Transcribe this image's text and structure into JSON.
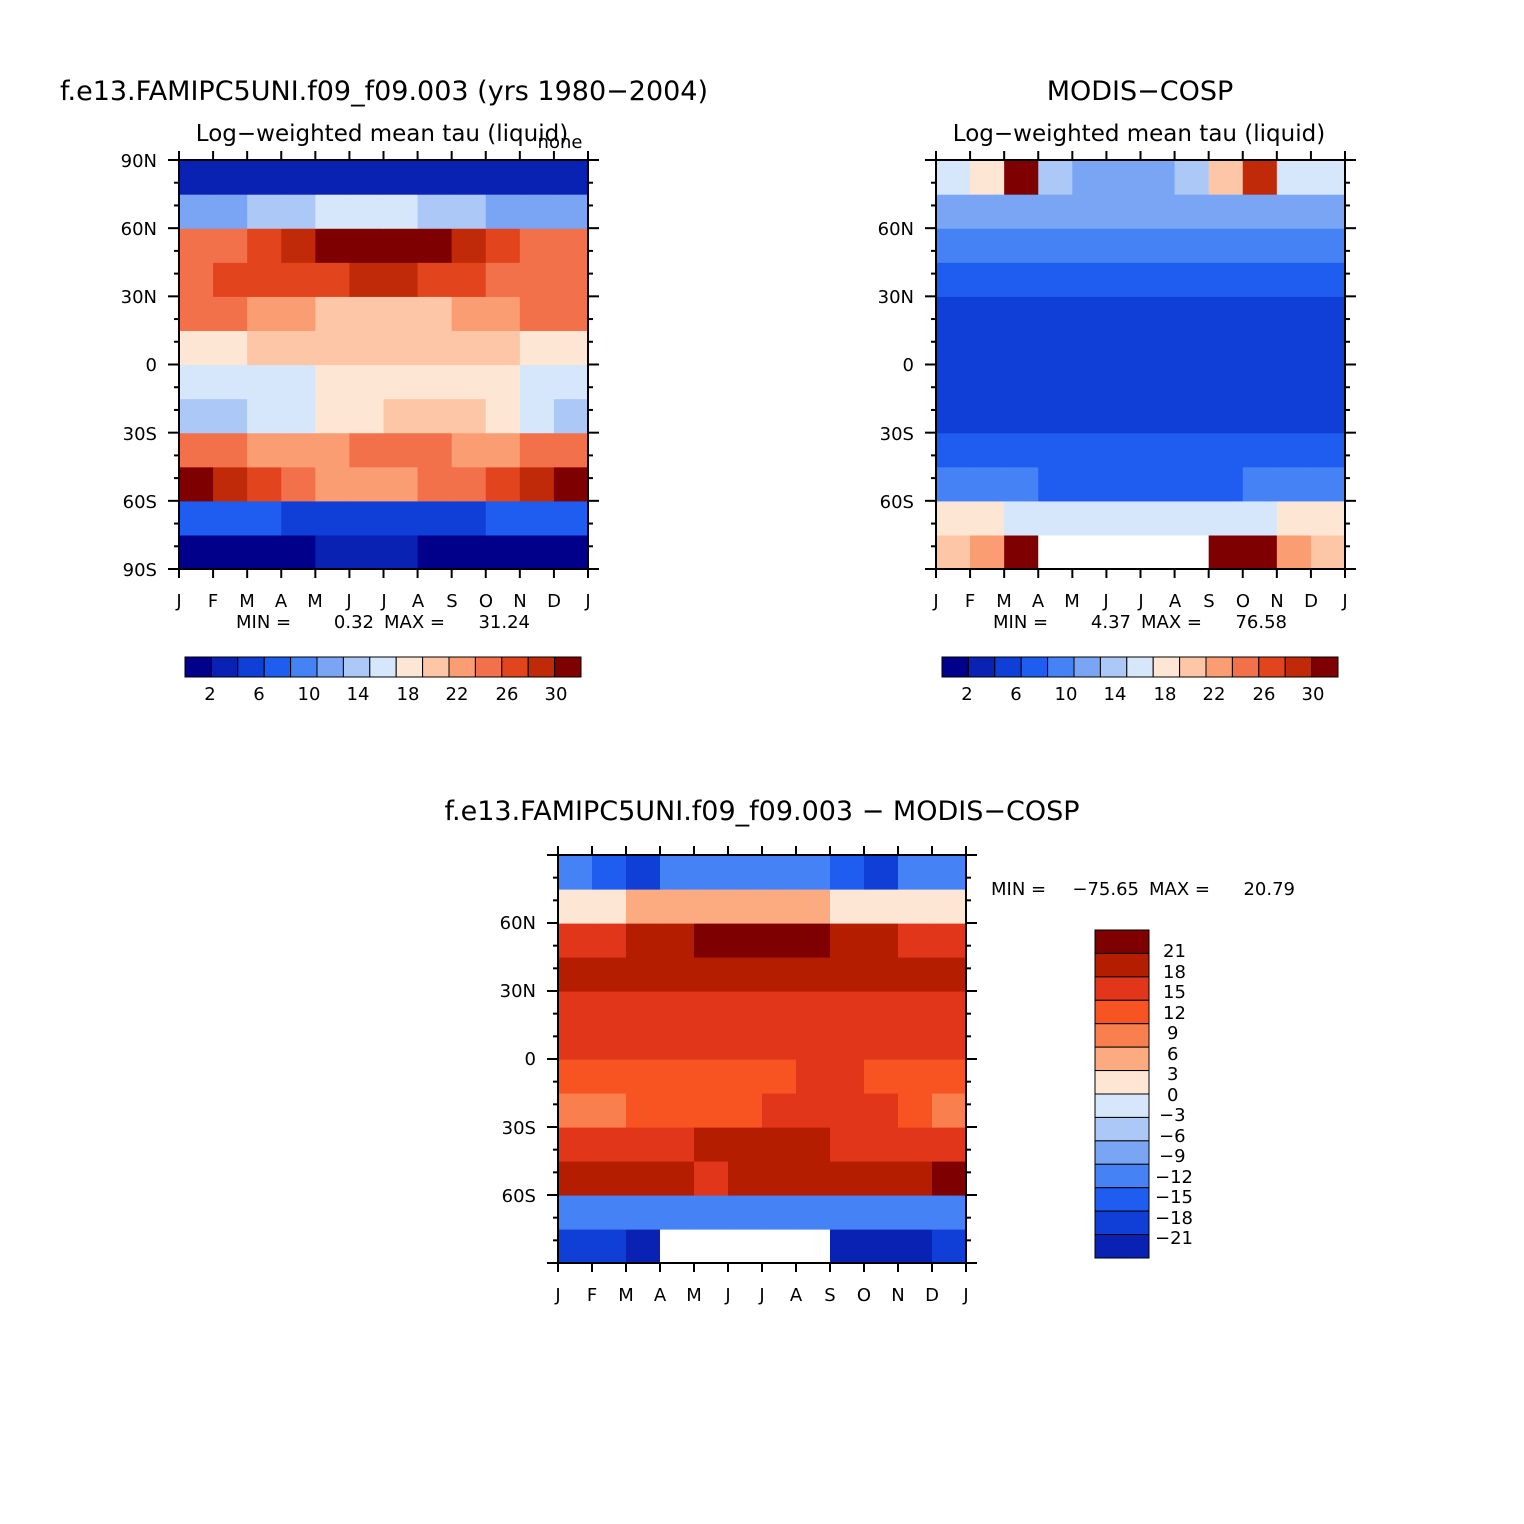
{
  "chart_data": [
    {
      "type": "heatmap",
      "id": "model",
      "title": "f.e13.FAMIPC5UNI.f09_f09.003 (yrs 1980−2004)",
      "subtitle": "Log−weighted mean tau (liquid)",
      "corner_label": "none",
      "xlabel": "",
      "ylabel": "",
      "x_ticks": [
        "J",
        "F",
        "M",
        "A",
        "M",
        "J",
        "J",
        "A",
        "S",
        "O",
        "N",
        "D",
        "J"
      ],
      "y_ticks": [
        "90N",
        "60N",
        "30N",
        "0",
        "30S",
        "60S",
        "90S"
      ],
      "xlim": [
        0,
        12
      ],
      "ylim": [
        -90,
        90
      ],
      "stats": {
        "min_label": "MIN =",
        "min": "0.32",
        "max_label": "MAX =",
        "max": "31.24"
      },
      "colorbar": {
        "labels": [
          "2",
          "6",
          "10",
          "14",
          "18",
          "22",
          "26",
          "30"
        ],
        "levels": [
          2,
          4,
          6,
          8,
          10,
          12,
          14,
          16,
          18,
          20,
          22,
          24,
          26,
          28,
          30
        ]
      },
      "months": [
        "Jan",
        "Feb",
        "Mar",
        "Apr",
        "May",
        "Jun",
        "Jul",
        "Aug",
        "Sep",
        "Oct",
        "Nov",
        "Dec"
      ],
      "latitude_bands": [
        -90,
        -75,
        -60,
        -45,
        -30,
        -15,
        0,
        15,
        30,
        45,
        60,
        75,
        90
      ],
      "band_values_tau": [
        [
          1,
          1,
          1,
          1,
          2,
          2,
          2,
          1,
          1,
          1,
          1,
          1
        ],
        [
          6,
          6,
          6,
          5,
          5,
          5,
          5,
          5,
          5,
          6,
          6,
          6
        ],
        [
          30,
          27,
          24,
          22,
          21,
          21,
          21,
          22,
          23,
          25,
          27,
          29
        ],
        [
          22,
          22,
          21,
          21,
          21,
          22,
          22,
          22,
          21,
          21,
          22,
          22
        ],
        [
          13,
          13,
          14,
          15,
          16,
          17,
          18,
          19,
          19,
          17,
          14,
          13
        ],
        [
          14,
          14,
          15,
          15,
          16,
          16,
          16,
          17,
          17,
          16,
          15,
          14
        ],
        [
          17,
          17,
          18,
          18,
          19,
          19,
          19,
          19,
          18,
          18,
          17,
          17
        ],
        [
          22,
          22,
          21,
          20,
          19,
          19,
          19,
          19,
          20,
          21,
          22,
          22
        ],
        [
          23,
          24,
          24,
          24,
          25,
          26,
          26,
          25,
          24,
          23,
          23,
          23
        ],
        [
          22,
          23,
          25,
          27,
          29,
          30,
          30,
          29,
          27,
          24,
          22,
          22
        ],
        [
          11,
          11,
          12,
          13,
          14,
          14,
          14,
          13,
          12,
          11,
          11,
          11
        ],
        [
          3,
          3,
          2,
          2,
          2,
          2,
          2,
          2,
          2,
          2,
          3,
          3
        ]
      ]
    },
    {
      "type": "heatmap",
      "id": "obs",
      "title": "MODIS−COSP",
      "subtitle": "Log−weighted mean tau (liquid)",
      "xlabel": "",
      "ylabel": "",
      "x_ticks": [
        "J",
        "F",
        "M",
        "A",
        "M",
        "J",
        "J",
        "A",
        "S",
        "O",
        "N",
        "D",
        "J"
      ],
      "y_ticks": [
        "60N",
        "30N",
        "0",
        "30S",
        "60S"
      ],
      "xlim": [
        0,
        12
      ],
      "ylim": [
        -90,
        90
      ],
      "stats": {
        "min_label": "MIN =",
        "min": "4.37",
        "max_label": "MAX =",
        "max": "76.58"
      },
      "colorbar": {
        "labels": [
          "2",
          "6",
          "10",
          "14",
          "18",
          "22",
          "26",
          "30"
        ],
        "levels": [
          2,
          4,
          6,
          8,
          10,
          12,
          14,
          16,
          18,
          20,
          22,
          24,
          26,
          28,
          30
        ]
      },
      "months": [
        "Jan",
        "Feb",
        "Mar",
        "Apr",
        "May",
        "Jun",
        "Jul",
        "Aug",
        "Sep",
        "Oct",
        "Nov",
        "Dec"
      ],
      "latitude_bands": [
        -90,
        -75,
        -60,
        -45,
        -30,
        -15,
        0,
        15,
        30,
        45,
        60,
        75,
        90
      ],
      "band_values_tau": [
        [
          18,
          20,
          32,
          null,
          null,
          null,
          null,
          null,
          32,
          31,
          20,
          18
        ],
        [
          16,
          16,
          15,
          14,
          14,
          14,
          14,
          14,
          15,
          15,
          16,
          16
        ],
        [
          8,
          8,
          8,
          7,
          7,
          7,
          7,
          7,
          7,
          8,
          8,
          8
        ],
        [
          6,
          6,
          6,
          6,
          6,
          6,
          6,
          6,
          6,
          6,
          6,
          6
        ],
        [
          5,
          5,
          5,
          5,
          5,
          5,
          5,
          5,
          5,
          5,
          5,
          5
        ],
        [
          4,
          4,
          4,
          5,
          5,
          5,
          5,
          5,
          5,
          4,
          4,
          4
        ],
        [
          4,
          4,
          4,
          4,
          4,
          4,
          4,
          4,
          4,
          4,
          4,
          4
        ],
        [
          5,
          5,
          5,
          5,
          5,
          5,
          5,
          5,
          5,
          5,
          5,
          5
        ],
        [
          6,
          6,
          6,
          6,
          6,
          6,
          6,
          6,
          6,
          6,
          6,
          6
        ],
        [
          8,
          8,
          8,
          9,
          9,
          9,
          9,
          9,
          9,
          8,
          8,
          8
        ],
        [
          10,
          10,
          10,
          11,
          11,
          11,
          11,
          11,
          11,
          10,
          10,
          10
        ],
        [
          14,
          16,
          29,
          13,
          11,
          11,
          11,
          12,
          18,
          27,
          15,
          14
        ]
      ]
    },
    {
      "type": "heatmap",
      "id": "diff",
      "title": "f.e13.FAMIPC5UNI.f09_f09.003 − MODIS−COSP",
      "xlabel": "",
      "ylabel": "",
      "x_ticks": [
        "J",
        "F",
        "M",
        "A",
        "M",
        "J",
        "J",
        "A",
        "S",
        "O",
        "N",
        "D",
        "J"
      ],
      "y_ticks": [
        "60N",
        "30N",
        "0",
        "30S",
        "60S"
      ],
      "xlim": [
        0,
        12
      ],
      "ylim": [
        -90,
        90
      ],
      "stats": {
        "min_label": "MIN =",
        "min": "−75.65",
        "max_label": "MAX =",
        "max": "20.79"
      },
      "colorbar": {
        "labels": [
          "21",
          "18",
          "15",
          "12",
          "9",
          "6",
          "3",
          "0",
          "−3",
          "−6",
          "−9",
          "−12",
          "−15",
          "−18",
          "−21"
        ],
        "levels": [
          21,
          18,
          15,
          12,
          9,
          6,
          3,
          0,
          -3,
          -6,
          -9,
          -12,
          -15,
          -18,
          -21
        ]
      },
      "months": [
        "Jan",
        "Feb",
        "Mar",
        "Apr",
        "May",
        "Jun",
        "Jul",
        "Aug",
        "Sep",
        "Oct",
        "Nov",
        "Dec"
      ],
      "latitude_bands": [
        -90,
        -75,
        -60,
        -45,
        -30,
        -15,
        0,
        15,
        30,
        45,
        60,
        75,
        90
      ],
      "band_values_tau": [
        [
          -17,
          -18,
          -22,
          null,
          null,
          null,
          null,
          null,
          -22,
          -24,
          -19,
          -16
        ],
        [
          -12,
          -12,
          -12,
          -11,
          -11,
          -11,
          -11,
          -11,
          -12,
          -12,
          -12,
          -12
        ],
        [
          17,
          17,
          16,
          15,
          14,
          15,
          15,
          15,
          15,
          16,
          17,
          18
        ],
        [
          13,
          13,
          14,
          14,
          15,
          15,
          15,
          15,
          14,
          14,
          13,
          13
        ],
        [
          8,
          8,
          9,
          10,
          11,
          11,
          12,
          13,
          13,
          12,
          9,
          8
        ],
        [
          9,
          9,
          10,
          10,
          11,
          11,
          11,
          12,
          12,
          11,
          10,
          9
        ],
        [
          12,
          12,
          13,
          13,
          14,
          14,
          14,
          14,
          13,
          13,
          12,
          12
        ],
        [
          13,
          14,
          14,
          14,
          13,
          13,
          13,
          13,
          13,
          14,
          14,
          14
        ],
        [
          16,
          17,
          17,
          17,
          15,
          15,
          15,
          15,
          15,
          16,
          16,
          16
        ],
        [
          13,
          14,
          16,
          17,
          19,
          19,
          19,
          18,
          17,
          15,
          13,
          13
        ],
        [
          1,
          2,
          3,
          3,
          4,
          4,
          4,
          3,
          2,
          1,
          2,
          1
        ],
        [
          -11,
          -13,
          -16,
          -12,
          -10,
          -10,
          -10,
          -11,
          -15,
          -16,
          -12,
          -11
        ]
      ]
    }
  ],
  "palettes": {
    "tau": [
      "#00008b",
      "#0a22b4",
      "#0f3fd6",
      "#1f5cf0",
      "#4582f5",
      "#7aa5f4",
      "#abc8f6",
      "#d6e7fb",
      "#fee6d4",
      "#fcc6a7",
      "#fa9d73",
      "#f2704a",
      "#e2451e",
      "#c02a08",
      "#7f0000"
    ],
    "diff": [
      "#7f0000",
      "#b51d00",
      "#e2361a",
      "#f85422",
      "#fa7f4f",
      "#fcab80",
      "#fee6d4",
      "#d6e7fb",
      "#abc8f6",
      "#7aa5f4",
      "#4582f5",
      "#1f5cf0",
      "#0f3fd6",
      "#0a22b4"
    ],
    "missing": "#ffffff"
  }
}
